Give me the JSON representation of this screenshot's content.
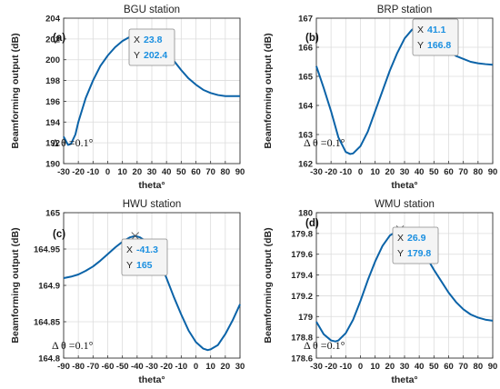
{
  "chart_data": [
    {
      "type": "line",
      "title": "BGU station",
      "panel_label": "(a)",
      "xlabel": "theta°",
      "ylabel": "Beamforming output (dB)",
      "xlim": [
        -30,
        90
      ],
      "ylim": [
        190,
        204
      ],
      "xticks": [
        -30,
        -20,
        -10,
        0,
        10,
        20,
        30,
        40,
        50,
        60,
        70,
        80,
        90
      ],
      "yticks": [
        190,
        192,
        194,
        196,
        198,
        200,
        202,
        204
      ],
      "grid": true,
      "annotation": "Δ θ =0.1°",
      "series": [
        {
          "color": "#0b63a8",
          "x": [
            -30,
            -27,
            -25,
            -22,
            -20,
            -15,
            -10,
            -5,
            0,
            5,
            10,
            15,
            20,
            23.8,
            30,
            35,
            40,
            45,
            50,
            55,
            60,
            65,
            70,
            75,
            80,
            85,
            90
          ],
          "y": [
            192.6,
            191.8,
            191.9,
            192.8,
            194.0,
            196.3,
            198.0,
            199.4,
            200.4,
            201.2,
            201.8,
            202.2,
            202.35,
            202.4,
            202.2,
            201.6,
            200.8,
            199.9,
            199.0,
            198.2,
            197.6,
            197.1,
            196.8,
            196.6,
            196.5,
            196.5,
            196.5
          ]
        }
      ],
      "datatip": {
        "x_label": "X",
        "x_value": "23.8",
        "y_label": "Y",
        "y_value": "202.4",
        "x": 23.8,
        "y": 202.4
      }
    },
    {
      "type": "line",
      "title": "BRP station",
      "panel_label": "(b)",
      "xlabel": "theta°",
      "ylabel": "Beamforming output (dB)",
      "xlim": [
        -30,
        90
      ],
      "ylim": [
        162,
        167
      ],
      "xticks": [
        -30,
        -20,
        -10,
        0,
        10,
        20,
        30,
        40,
        50,
        60,
        70,
        80,
        90
      ],
      "yticks": [
        162,
        163,
        164,
        165,
        166,
        167
      ],
      "grid": true,
      "annotation": "Δ θ =0.1°",
      "series": [
        {
          "color": "#0b63a8",
          "x": [
            -30,
            -25,
            -20,
            -15,
            -10,
            -7,
            -5,
            0,
            5,
            10,
            15,
            20,
            25,
            30,
            35,
            41.1,
            45,
            50,
            55,
            60,
            65,
            70,
            75,
            80,
            85,
            90
          ],
          "y": [
            165.35,
            164.6,
            163.8,
            162.9,
            162.4,
            162.33,
            162.35,
            162.6,
            163.1,
            163.8,
            164.5,
            165.2,
            165.8,
            166.3,
            166.6,
            166.8,
            166.75,
            166.45,
            166.15,
            165.9,
            165.7,
            165.6,
            165.5,
            165.45,
            165.42,
            165.4
          ]
        }
      ],
      "datatip": {
        "x_label": "X",
        "x_value": "41.1",
        "y_label": "Y",
        "y_value": "166.8",
        "x": 41.1,
        "y": 166.8
      }
    },
    {
      "type": "line",
      "title": "HWU station",
      "panel_label": "(c)",
      "xlabel": "theta°",
      "ylabel": "Beamforming output (dB)",
      "xlim": [
        -90,
        30
      ],
      "ylim": [
        164.8,
        165
      ],
      "xticks": [
        -90,
        -80,
        -70,
        -60,
        -50,
        -40,
        -30,
        -20,
        -10,
        0,
        10,
        20,
        30
      ],
      "yticks": [
        164.8,
        164.85,
        164.9,
        164.95,
        165
      ],
      "grid": true,
      "annotation": "Δ θ =0.1°",
      "series": [
        {
          "color": "#0b63a8",
          "x": [
            -90,
            -85,
            -80,
            -75,
            -70,
            -65,
            -60,
            -55,
            -50,
            -45,
            -41.3,
            -38,
            -35,
            -30,
            -25,
            -20,
            -15,
            -10,
            -5,
            0,
            5,
            8,
            10,
            15,
            20,
            25,
            30
          ],
          "y": [
            164.91,
            164.912,
            164.915,
            164.92,
            164.926,
            164.934,
            164.943,
            164.952,
            164.96,
            164.966,
            164.968,
            164.966,
            164.962,
            164.952,
            164.935,
            164.91,
            164.884,
            164.86,
            164.838,
            164.822,
            164.813,
            164.811,
            164.812,
            164.818,
            164.833,
            164.852,
            164.874
          ]
        }
      ],
      "datatip": {
        "x_label": "X",
        "x_value": "-41.3",
        "y_label": "Y",
        "y_value": "165",
        "x": -41.3,
        "y": 164.968
      }
    },
    {
      "type": "line",
      "title": "WMU station",
      "panel_label": "(d)",
      "xlabel": "theta°",
      "ylabel": "Beamforming output (dB)",
      "xlim": [
        -30,
        90
      ],
      "ylim": [
        178.6,
        180
      ],
      "xticks": [
        -30,
        -20,
        -10,
        0,
        10,
        20,
        30,
        40,
        50,
        60,
        70,
        80,
        90
      ],
      "yticks": [
        178.6,
        178.8,
        179,
        179.2,
        179.4,
        179.6,
        179.8,
        180
      ],
      "grid": true,
      "annotation": "Δ θ =0.1°",
      "series": [
        {
          "color": "#0b63a8",
          "x": [
            -30,
            -25,
            -20,
            -17,
            -15,
            -10,
            -5,
            0,
            5,
            10,
            15,
            20,
            26.9,
            30,
            35,
            40,
            45,
            50,
            55,
            60,
            65,
            70,
            75,
            80,
            85,
            90
          ],
          "y": [
            178.95,
            178.83,
            178.77,
            178.76,
            178.77,
            178.84,
            178.97,
            179.15,
            179.35,
            179.53,
            179.68,
            179.78,
            179.84,
            179.83,
            179.78,
            179.69,
            179.57,
            179.45,
            179.34,
            179.23,
            179.14,
            179.07,
            179.02,
            178.99,
            178.97,
            178.96
          ]
        }
      ],
      "datatip": {
        "x_label": "X",
        "x_value": "26.9",
        "y_label": "Y",
        "y_value": "179.8",
        "x": 26.9,
        "y": 179.84
      }
    }
  ]
}
